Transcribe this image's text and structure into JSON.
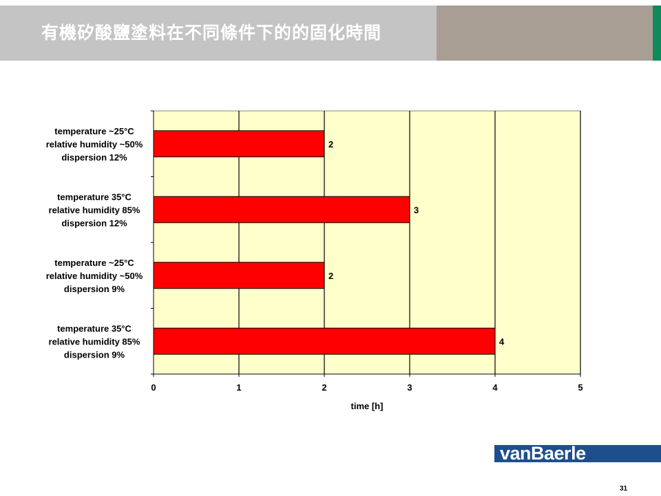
{
  "slide": {
    "title": "有機矽酸鹽塗料在不同條件下的的固化時間",
    "page_number": "31",
    "logo_text": "vanBaerle"
  },
  "colors": {
    "bar_fill": "#ff0000",
    "plot_background": "#ffffcc",
    "title_band": "#c4c4c4",
    "title_accent": "#a89e94",
    "brand_green": "#0f8a5a",
    "logo_blue": "#1f4e8c"
  },
  "chart_data": {
    "type": "bar",
    "orientation": "horizontal",
    "categories": [
      [
        "temperature ~25°C",
        "relative humidity ~50%",
        "dispersion 12%"
      ],
      [
        "temperature 35°C",
        "relative humidity 85%",
        "dispersion 12%"
      ],
      [
        "temperature ~25°C",
        "relative humidity ~50%",
        "dispersion 9%"
      ],
      [
        "temperature 35°C",
        "relative humidity 85%",
        "dispersion 9%"
      ]
    ],
    "values": [
      2,
      3,
      2,
      4
    ],
    "data_labels": [
      "2",
      "3",
      "2",
      "4"
    ],
    "xlabel": "time [h]",
    "ylabel": "",
    "xlim": [
      0,
      5
    ],
    "x_ticks": [
      "0",
      "1",
      "2",
      "3",
      "4",
      "5"
    ],
    "grid": "vertical",
    "legend": "none"
  }
}
